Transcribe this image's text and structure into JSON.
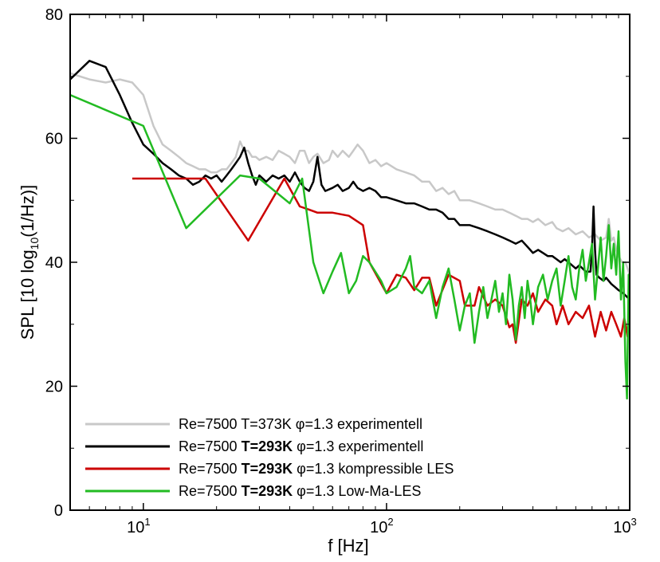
{
  "chart_data": {
    "type": "line",
    "xlabel": "f [Hz]",
    "ylabel": {
      "main": "SPL [10 log",
      "sub": "10",
      "tail": "(1/Hz)]"
    },
    "xscale": "log",
    "xlim": [
      5,
      1000
    ],
    "ylim": [
      0,
      80
    ],
    "x_ticks": [
      {
        "value": 10,
        "base": "10",
        "exp": "1"
      },
      {
        "value": 100,
        "base": "10",
        "exp": "2"
      },
      {
        "value": 1000,
        "base": "10",
        "exp": "3"
      }
    ],
    "y_ticks": [
      0,
      20,
      40,
      60,
      80
    ],
    "grid": false,
    "legend_position": "bottom-left",
    "series": [
      {
        "color": "#c8c8c8",
        "legend": {
          "pre": "Re=7500 T=373K ",
          "bold": "",
          "phi": "φ",
          "post": "=1.3 experimentell"
        },
        "points": [
          [
            5,
            70.5
          ],
          [
            6,
            69.5
          ],
          [
            7,
            69
          ],
          [
            8,
            69.5
          ],
          [
            9,
            69
          ],
          [
            10,
            67
          ],
          [
            11,
            62
          ],
          [
            12,
            59
          ],
          [
            13,
            58
          ],
          [
            14,
            57
          ],
          [
            15,
            56
          ],
          [
            16,
            55.5
          ],
          [
            17,
            55
          ],
          [
            18,
            55
          ],
          [
            19,
            54.5
          ],
          [
            20,
            54.5
          ],
          [
            21,
            55
          ],
          [
            22,
            55
          ],
          [
            23,
            56
          ],
          [
            24,
            57
          ],
          [
            25,
            59.5
          ],
          [
            26,
            58
          ],
          [
            27,
            58
          ],
          [
            28,
            57
          ],
          [
            29,
            57
          ],
          [
            30,
            56.5
          ],
          [
            32,
            57
          ],
          [
            34,
            56.5
          ],
          [
            36,
            58
          ],
          [
            38,
            57.5
          ],
          [
            40,
            57
          ],
          [
            42,
            56
          ],
          [
            44,
            58
          ],
          [
            46,
            58
          ],
          [
            48,
            56
          ],
          [
            50,
            57
          ],
          [
            52,
            57.5
          ],
          [
            55,
            56
          ],
          [
            58,
            56.5
          ],
          [
            60,
            58
          ],
          [
            63,
            57
          ],
          [
            66,
            58
          ],
          [
            70,
            57
          ],
          [
            73,
            58
          ],
          [
            76,
            59
          ],
          [
            80,
            58
          ],
          [
            85,
            56
          ],
          [
            90,
            56.5
          ],
          [
            95,
            55.5
          ],
          [
            100,
            56
          ],
          [
            110,
            55
          ],
          [
            120,
            54.5
          ],
          [
            130,
            54
          ],
          [
            140,
            53
          ],
          [
            150,
            53
          ],
          [
            160,
            51.5
          ],
          [
            170,
            52
          ],
          [
            180,
            51
          ],
          [
            190,
            51.5
          ],
          [
            200,
            50
          ],
          [
            220,
            50
          ],
          [
            240,
            49.5
          ],
          [
            260,
            49
          ],
          [
            280,
            48.5
          ],
          [
            300,
            48.5
          ],
          [
            320,
            48
          ],
          [
            340,
            47.5
          ],
          [
            360,
            47
          ],
          [
            380,
            47
          ],
          [
            400,
            46.5
          ],
          [
            420,
            47
          ],
          [
            450,
            46
          ],
          [
            480,
            46.5
          ],
          [
            500,
            45.5
          ],
          [
            530,
            45
          ],
          [
            560,
            45.5
          ],
          [
            600,
            44.5
          ],
          [
            640,
            45
          ],
          [
            680,
            44
          ],
          [
            720,
            44.5
          ],
          [
            760,
            43.5
          ],
          [
            800,
            44
          ],
          [
            820,
            47
          ],
          [
            840,
            43.5
          ],
          [
            860,
            44
          ],
          [
            880,
            42
          ],
          [
            900,
            41
          ],
          [
            930,
            40
          ],
          [
            960,
            40
          ],
          [
            1000,
            38
          ]
        ]
      },
      {
        "color": "#000000",
        "legend": {
          "pre": "Re=7500 ",
          "bold": "T=293K",
          "phi": " φ",
          "post": "=1.3 experimentell"
        },
        "points": [
          [
            5,
            69.5
          ],
          [
            6,
            72.5
          ],
          [
            7,
            71.5
          ],
          [
            8,
            67
          ],
          [
            9,
            62.5
          ],
          [
            10,
            59
          ],
          [
            11,
            57.5
          ],
          [
            12,
            56
          ],
          [
            13,
            55
          ],
          [
            14,
            54
          ],
          [
            15,
            53.5
          ],
          [
            16,
            52.5
          ],
          [
            17,
            53
          ],
          [
            18,
            54
          ],
          [
            19,
            53.5
          ],
          [
            20,
            54
          ],
          [
            21,
            53
          ],
          [
            22,
            54
          ],
          [
            23,
            55
          ],
          [
            24,
            56
          ],
          [
            25,
            57
          ],
          [
            26,
            58.5
          ],
          [
            27,
            56
          ],
          [
            28,
            54
          ],
          [
            29,
            52.5
          ],
          [
            30,
            54
          ],
          [
            32,
            53
          ],
          [
            34,
            54
          ],
          [
            36,
            53.5
          ],
          [
            38,
            54
          ],
          [
            40,
            53
          ],
          [
            42,
            54.5
          ],
          [
            44,
            53
          ],
          [
            46,
            52
          ],
          [
            48,
            51.5
          ],
          [
            50,
            53
          ],
          [
            52,
            57
          ],
          [
            54,
            52.5
          ],
          [
            56,
            51.5
          ],
          [
            60,
            52
          ],
          [
            63,
            52.5
          ],
          [
            66,
            51.5
          ],
          [
            70,
            52
          ],
          [
            73,
            53
          ],
          [
            76,
            52
          ],
          [
            80,
            51.5
          ],
          [
            85,
            52
          ],
          [
            90,
            51.5
          ],
          [
            95,
            50.5
          ],
          [
            100,
            50.5
          ],
          [
            110,
            50
          ],
          [
            120,
            49.5
          ],
          [
            130,
            49.5
          ],
          [
            140,
            49
          ],
          [
            150,
            48.5
          ],
          [
            160,
            48.5
          ],
          [
            170,
            48
          ],
          [
            180,
            47
          ],
          [
            190,
            47
          ],
          [
            200,
            46
          ],
          [
            210,
            46
          ],
          [
            220,
            46
          ],
          [
            240,
            45.5
          ],
          [
            260,
            45
          ],
          [
            280,
            44.5
          ],
          [
            300,
            44
          ],
          [
            320,
            43.5
          ],
          [
            340,
            43
          ],
          [
            360,
            43.5
          ],
          [
            380,
            42.5
          ],
          [
            400,
            41.5
          ],
          [
            420,
            42
          ],
          [
            440,
            41.5
          ],
          [
            460,
            41
          ],
          [
            480,
            41
          ],
          [
            500,
            40.5
          ],
          [
            520,
            40
          ],
          [
            540,
            40.5
          ],
          [
            560,
            40
          ],
          [
            580,
            39.5
          ],
          [
            600,
            39
          ],
          [
            620,
            39.5
          ],
          [
            640,
            39
          ],
          [
            660,
            38.5
          ],
          [
            690,
            38.5
          ],
          [
            700,
            42
          ],
          [
            710,
            49
          ],
          [
            720,
            42
          ],
          [
            730,
            38
          ],
          [
            750,
            37.5
          ],
          [
            780,
            37
          ],
          [
            800,
            37.5
          ],
          [
            820,
            37
          ],
          [
            840,
            36.5
          ],
          [
            870,
            36
          ],
          [
            900,
            35.5
          ],
          [
            940,
            35
          ],
          [
            970,
            34.5
          ],
          [
            1000,
            34
          ]
        ]
      },
      {
        "color": "#cc0000",
        "legend": {
          "pre": "Re=7500 ",
          "bold": "T=293K",
          "phi": " φ",
          "post": "=1.3 kompressible LES"
        },
        "points": [
          [
            9,
            53.5
          ],
          [
            11,
            53.5
          ],
          [
            14,
            53.5
          ],
          [
            18,
            53.5
          ],
          [
            27,
            43.5
          ],
          [
            38,
            53.5
          ],
          [
            44,
            49
          ],
          [
            48,
            48.5
          ],
          [
            52,
            48
          ],
          [
            60,
            48
          ],
          [
            70,
            47.5
          ],
          [
            80,
            46
          ],
          [
            85,
            40
          ],
          [
            100,
            35
          ],
          [
            110,
            38
          ],
          [
            120,
            37.5
          ],
          [
            130,
            35.5
          ],
          [
            140,
            37.5
          ],
          [
            150,
            37.5
          ],
          [
            160,
            33
          ],
          [
            180,
            38
          ],
          [
            200,
            37
          ],
          [
            210,
            33
          ],
          [
            230,
            33
          ],
          [
            240,
            36
          ],
          [
            260,
            33
          ],
          [
            280,
            34
          ],
          [
            300,
            33
          ],
          [
            320,
            29.5
          ],
          [
            330,
            30
          ],
          [
            340,
            27
          ],
          [
            360,
            34
          ],
          [
            380,
            33
          ],
          [
            400,
            35
          ],
          [
            420,
            32
          ],
          [
            450,
            34
          ],
          [
            480,
            33
          ],
          [
            500,
            30
          ],
          [
            530,
            33
          ],
          [
            560,
            30
          ],
          [
            600,
            32
          ],
          [
            640,
            31
          ],
          [
            680,
            33
          ],
          [
            720,
            28
          ],
          [
            760,
            32
          ],
          [
            800,
            29
          ],
          [
            840,
            32
          ],
          [
            880,
            30
          ],
          [
            920,
            28
          ],
          [
            950,
            31
          ],
          [
            980,
            28
          ],
          [
            1000,
            35
          ]
        ]
      },
      {
        "color": "#22bb22",
        "legend": {
          "pre": "Re=7500 ",
          "bold": "T=293K",
          "phi": " φ",
          "post": "=1.3 Low-Ma-LES"
        },
        "points": [
          [
            5,
            67
          ],
          [
            10,
            62
          ],
          [
            15,
            45.5
          ],
          [
            25,
            54
          ],
          [
            30,
            53.5
          ],
          [
            40,
            49.5
          ],
          [
            45,
            53.5
          ],
          [
            50,
            40
          ],
          [
            55,
            35
          ],
          [
            60,
            38.5
          ],
          [
            65,
            41.5
          ],
          [
            70,
            35
          ],
          [
            75,
            37
          ],
          [
            80,
            41
          ],
          [
            85,
            40
          ],
          [
            95,
            37
          ],
          [
            100,
            35
          ],
          [
            110,
            36
          ],
          [
            120,
            39
          ],
          [
            125,
            41
          ],
          [
            130,
            36
          ],
          [
            140,
            35
          ],
          [
            150,
            37
          ],
          [
            160,
            31
          ],
          [
            170,
            36
          ],
          [
            180,
            39
          ],
          [
            190,
            34
          ],
          [
            200,
            29
          ],
          [
            210,
            33
          ],
          [
            220,
            35
          ],
          [
            230,
            27
          ],
          [
            240,
            32
          ],
          [
            250,
            36
          ],
          [
            260,
            31
          ],
          [
            270,
            34
          ],
          [
            280,
            37
          ],
          [
            290,
            32
          ],
          [
            300,
            35
          ],
          [
            310,
            30
          ],
          [
            320,
            38
          ],
          [
            330,
            34
          ],
          [
            340,
            27.5
          ],
          [
            350,
            33
          ],
          [
            360,
            36
          ],
          [
            370,
            31
          ],
          [
            380,
            37
          ],
          [
            390,
            34
          ],
          [
            400,
            30
          ],
          [
            420,
            36
          ],
          [
            440,
            38
          ],
          [
            460,
            34
          ],
          [
            480,
            37
          ],
          [
            500,
            39
          ],
          [
            520,
            33
          ],
          [
            540,
            37
          ],
          [
            560,
            41
          ],
          [
            580,
            36
          ],
          [
            600,
            34
          ],
          [
            620,
            39
          ],
          [
            640,
            42
          ],
          [
            660,
            37
          ],
          [
            680,
            40
          ],
          [
            700,
            43
          ],
          [
            720,
            34
          ],
          [
            740,
            39
          ],
          [
            760,
            44
          ],
          [
            780,
            37
          ],
          [
            800,
            41
          ],
          [
            820,
            46
          ],
          [
            840,
            39
          ],
          [
            860,
            43
          ],
          [
            880,
            38
          ],
          [
            900,
            45
          ],
          [
            920,
            34
          ],
          [
            940,
            40
          ],
          [
            960,
            24
          ],
          [
            975,
            18
          ],
          [
            990,
            38
          ],
          [
            1000,
            37
          ]
        ]
      }
    ]
  }
}
